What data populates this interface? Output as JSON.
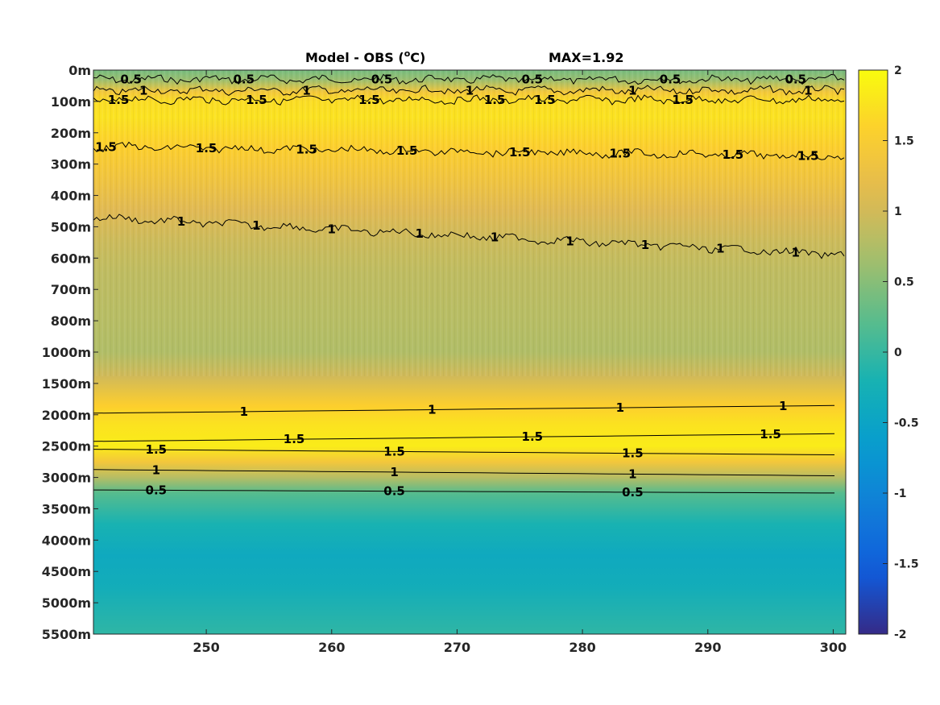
{
  "chart_data": {
    "type": "heatmap",
    "title": "Model - OBS (",
    "title_sup": "o",
    "title_unit": "C)",
    "max_label": "MAX=1.92",
    "colormap": "parula",
    "x_ticks": [
      250,
      260,
      270,
      280,
      290,
      300
    ],
    "xlim": [
      241,
      301
    ],
    "y_tick_labels": [
      "0m",
      "100m",
      "200m",
      "300m",
      "400m",
      "500m",
      "600m",
      "700m",
      "800m",
      "1000m",
      "1500m",
      "2000m",
      "2500m",
      "3000m",
      "3500m",
      "4000m",
      "4500m",
      "5000m",
      "5500m"
    ],
    "colorbar": {
      "ticks": [
        "2",
        "1.5",
        "1",
        "0.5",
        "0",
        "-0.5",
        "-1",
        "-1.5",
        "-2"
      ],
      "range": [
        -2,
        2
      ]
    },
    "depth_profile": [
      {
        "depth_index": 0,
        "value": 0.4
      },
      {
        "depth_index": 0.3,
        "value": 0.6
      },
      {
        "depth_index": 0.7,
        "value": 1.4
      },
      {
        "depth_index": 1.0,
        "value": 1.7
      },
      {
        "depth_index": 1.5,
        "value": 1.75
      },
      {
        "depth_index": 2.5,
        "value": 1.55
      },
      {
        "depth_index": 3.5,
        "value": 1.35
      },
      {
        "depth_index": 4.5,
        "value": 1.1
      },
      {
        "depth_index": 5.5,
        "value": 0.95
      },
      {
        "depth_index": 6.5,
        "value": 0.85
      },
      {
        "depth_index": 8.0,
        "value": 0.8
      },
      {
        "depth_index": 9.0,
        "value": 0.75
      },
      {
        "depth_index": 9.8,
        "value": 1.0
      },
      {
        "depth_index": 10.7,
        "value": 1.55
      },
      {
        "depth_index": 11.3,
        "value": 1.75
      },
      {
        "depth_index": 12.0,
        "value": 1.85
      },
      {
        "depth_index": 12.5,
        "value": 1.4
      },
      {
        "depth_index": 13.0,
        "value": 0.8
      },
      {
        "depth_index": 13.5,
        "value": 0.2
      },
      {
        "depth_index": 14.5,
        "value": -0.2
      },
      {
        "depth_index": 15.5,
        "value": -0.4
      },
      {
        "depth_index": 16.5,
        "value": -0.3
      },
      {
        "depth_index": 18.0,
        "value": -0.05
      }
    ],
    "contours": [
      {
        "level": "0.5",
        "depth_index": [
          0.3,
          0.3
        ],
        "noisy": true,
        "labels_x": [
          244,
          253,
          264,
          276,
          287,
          297
        ]
      },
      {
        "level": "1",
        "depth_index": [
          0.65,
          0.65
        ],
        "noisy": true,
        "labels_x": [
          245,
          258,
          271,
          284,
          298
        ]
      },
      {
        "level": "1.5",
        "depth_index": [
          0.95,
          0.95
        ],
        "noisy": true,
        "labels_x": [
          243,
          254,
          263,
          273,
          277,
          288
        ]
      },
      {
        "level": "1.5",
        "depth_index": [
          2.45,
          2.75
        ],
        "noisy": true,
        "labels_x": [
          242,
          250,
          258,
          266,
          275,
          283,
          292,
          298
        ]
      },
      {
        "level": "1",
        "depth_index": [
          4.7,
          5.9
        ],
        "noisy": true,
        "labels_x": [
          248,
          254,
          260,
          267,
          273,
          279,
          285,
          291,
          297
        ]
      },
      {
        "level": "1",
        "depth_index": [
          10.95,
          10.7
        ],
        "noisy": false,
        "labels_x": [
          253,
          268,
          283,
          296
        ]
      },
      {
        "level": "1.5",
        "depth_index": [
          11.85,
          11.6
        ],
        "noisy": false,
        "labels_x": [
          257,
          276,
          295
        ]
      },
      {
        "level": "1.5",
        "depth_index": [
          12.1,
          12.28
        ],
        "noisy": false,
        "labels_x": [
          246,
          265,
          284
        ]
      },
      {
        "level": "1",
        "depth_index": [
          12.75,
          12.95
        ],
        "noisy": false,
        "labels_x": [
          246,
          265,
          284
        ]
      },
      {
        "level": "0.5",
        "depth_index": [
          13.4,
          13.5
        ],
        "noisy": false,
        "labels_x": [
          246,
          265,
          284
        ]
      }
    ]
  }
}
